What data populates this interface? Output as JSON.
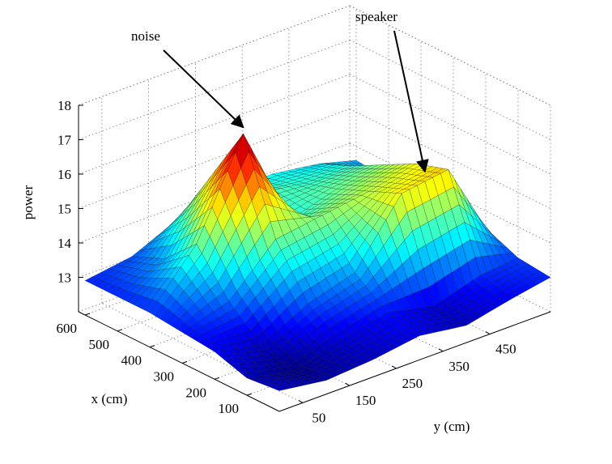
{
  "chart_data": {
    "type": "surface",
    "xlabel": "x (cm)",
    "ylabel": "y (cm)",
    "zlabel": "power",
    "x": [
      0,
      100,
      200,
      300,
      400,
      500,
      600
    ],
    "y": [
      0,
      100,
      200,
      300,
      400,
      500,
      580
    ],
    "z": [
      [
        12.6,
        12.4,
        12.5,
        12.7,
        12.5,
        12.8,
        13.0
      ],
      [
        12.5,
        12.2,
        12.6,
        12.9,
        12.6,
        13.0,
        13.1
      ],
      [
        12.8,
        12.5,
        13.2,
        13.6,
        15.4,
        15.6,
        13.5
      ],
      [
        12.9,
        13.3,
        14.6,
        14.8,
        15.0,
        15.3,
        14.0
      ],
      [
        13.0,
        14.5,
        17.2,
        14.2,
        14.6,
        14.8,
        13.8
      ],
      [
        13.0,
        13.6,
        15.5,
        14.5,
        14.3,
        14.3,
        13.5
      ],
      [
        13.0,
        13.2,
        13.8,
        14.0,
        14.1,
        13.9,
        13.6
      ]
    ],
    "xlim": [
      0,
      620
    ],
    "ylim": [
      0,
      580
    ],
    "zlim": [
      12,
      18
    ],
    "xticks": [
      100,
      200,
      300,
      400,
      500,
      600
    ],
    "yticks": [
      50,
      150,
      250,
      350,
      450
    ],
    "zticks": [
      13,
      14,
      15,
      16,
      17,
      18
    ],
    "colormap": "jet",
    "grid": true,
    "annotations": [
      {
        "text": "noise",
        "x": 400,
        "y": 200,
        "z": 17.2
      },
      {
        "text": "speaker",
        "x": 200,
        "y": 450,
        "z": 15.6
      }
    ]
  }
}
